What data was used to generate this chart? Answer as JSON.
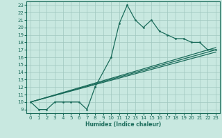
{
  "xlabel": "Humidex (Indice chaleur)",
  "bg_color": "#c8e8e0",
  "grid_color": "#a0c8c0",
  "line_color": "#1a6b5a",
  "spine_color": "#1a6b5a",
  "xlim": [
    -0.5,
    23.5
  ],
  "ylim": [
    8.5,
    23.5
  ],
  "xticks": [
    0,
    1,
    2,
    3,
    4,
    5,
    6,
    7,
    8,
    9,
    10,
    11,
    12,
    13,
    14,
    15,
    16,
    17,
    18,
    19,
    20,
    21,
    22,
    23
  ],
  "yticks": [
    9,
    10,
    11,
    12,
    13,
    14,
    15,
    16,
    17,
    18,
    19,
    20,
    21,
    22,
    23
  ],
  "series1_x": [
    0,
    1,
    2,
    3,
    4,
    5,
    6,
    7,
    8
  ],
  "series1_y": [
    10,
    9,
    9,
    10,
    10,
    10,
    10,
    9,
    12
  ],
  "series2_x": [
    8,
    10,
    11,
    12,
    13,
    14,
    15,
    16,
    17,
    18,
    19,
    20,
    21,
    22,
    23
  ],
  "series2_y": [
    12,
    16,
    20.5,
    23,
    21,
    20,
    21,
    19.5,
    19,
    18.5,
    18.5,
    18,
    18,
    17,
    17
  ],
  "series3_x": [
    0,
    23
  ],
  "series3_y": [
    10,
    17.0
  ],
  "series4_x": [
    0,
    23
  ],
  "series4_y": [
    10,
    17.3
  ],
  "series5_x": [
    0,
    23
  ],
  "series5_y": [
    10,
    16.7
  ]
}
